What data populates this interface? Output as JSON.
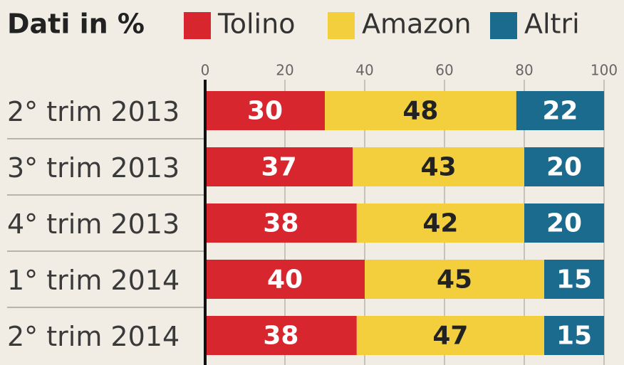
{
  "chart_data": {
    "type": "stacked-barh",
    "title": "Dati in %",
    "categories": [
      "2° trim 2013",
      "3° trim 2013",
      "4° trim 2013",
      "1° trim 2014",
      "2° trim 2014"
    ],
    "series": [
      {
        "name": "Tolino",
        "color": "#d8262e",
        "values": [
          30,
          37,
          38,
          40,
          38
        ]
      },
      {
        "name": "Amazon",
        "color": "#f3cf3e",
        "values": [
          48,
          43,
          42,
          45,
          47
        ]
      },
      {
        "name": "Altri",
        "color": "#1b6b8f",
        "values": [
          22,
          20,
          20,
          15,
          15
        ]
      }
    ],
    "xlim": [
      0,
      100
    ],
    "xticks": [
      0,
      20,
      40,
      60,
      80,
      100
    ],
    "grid": true
  }
}
